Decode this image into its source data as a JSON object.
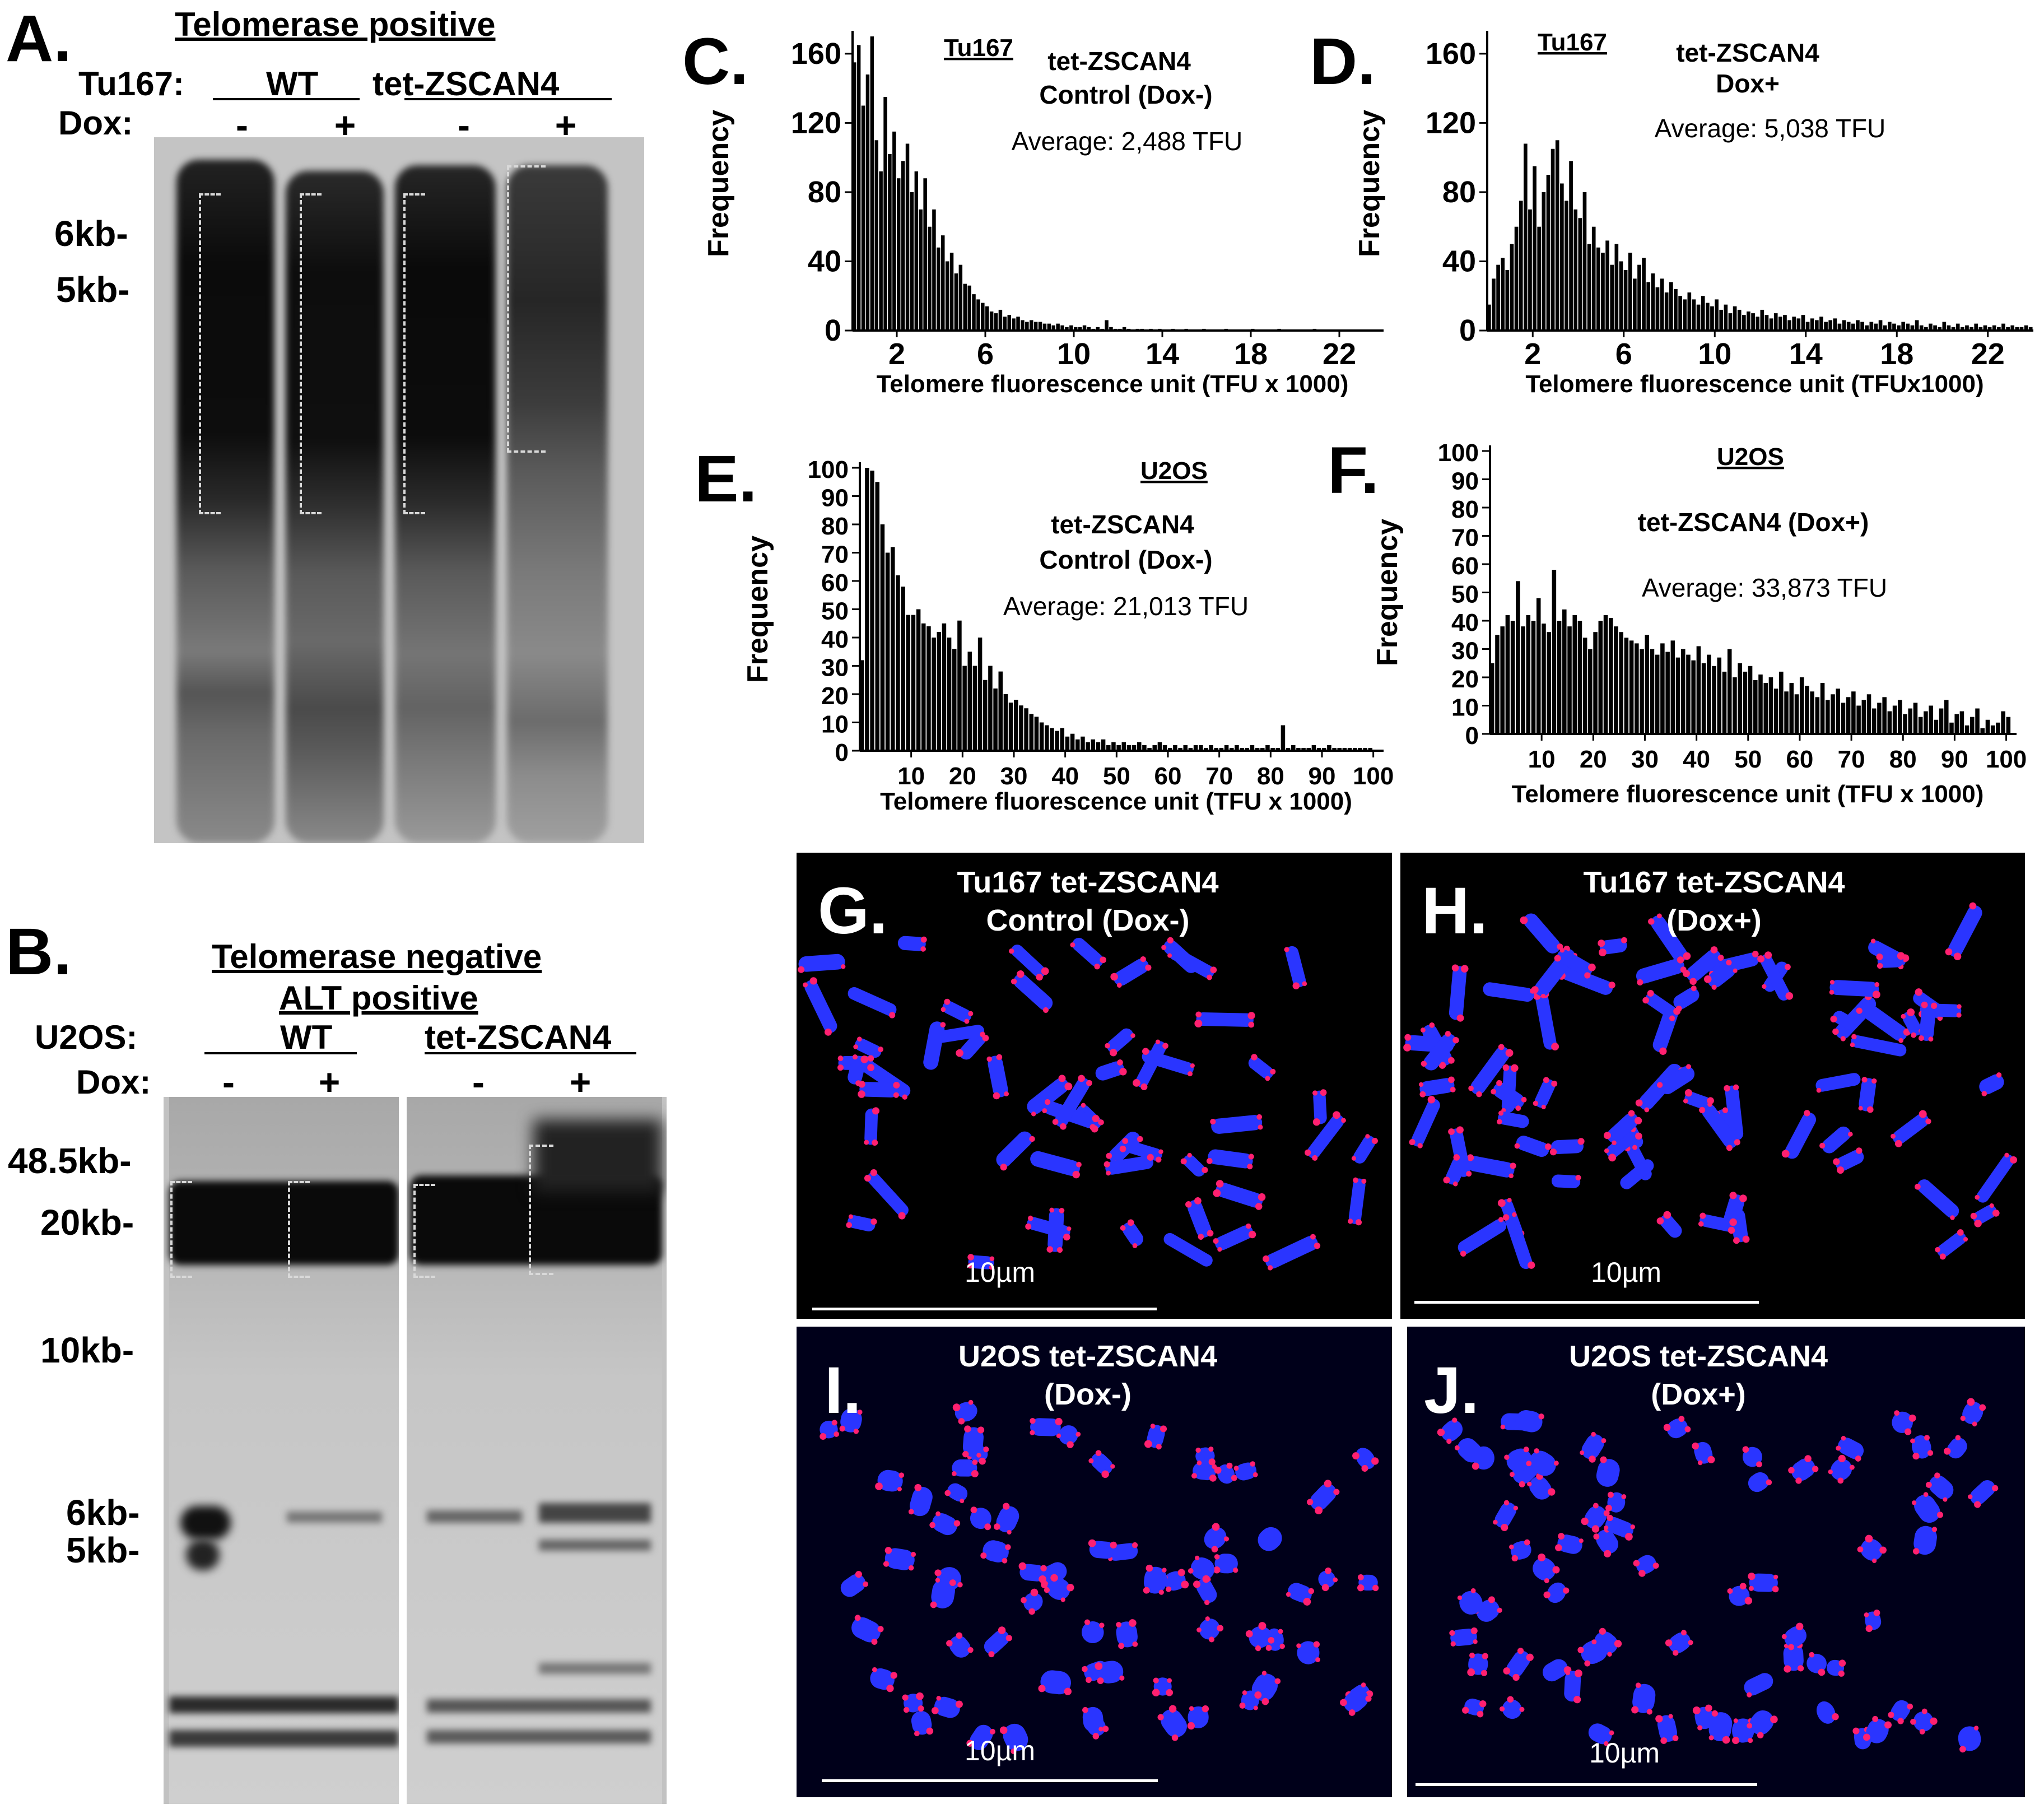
{
  "panelA": {
    "letter": "A.",
    "title": "Telomerase positive",
    "row_label": "Tu167:",
    "groups": [
      "WT",
      "tet-ZSCAN4"
    ],
    "dox_label": "Dox:",
    "dox": [
      "-",
      "+",
      "-",
      "+"
    ],
    "markers": [
      "6kb-",
      "5kb-"
    ]
  },
  "panelB": {
    "letter": "B.",
    "title1": "Telomerase negative",
    "title2": "ALT positive",
    "row_label": "U2OS:",
    "groups": [
      "WT",
      "tet-ZSCAN4"
    ],
    "dox_label": "Dox:",
    "dox": [
      "-",
      "+",
      "-",
      "+"
    ],
    "markers": [
      "48.5kb-",
      "20kb-",
      "10kb-",
      "6kb-",
      "5kb-"
    ]
  },
  "chart_data": [
    {
      "panel": "C.",
      "type": "bar",
      "cell": "Tu167",
      "title1": "tet-ZSCAN4",
      "title2": "Control (Dox-)",
      "average": "Average: 2,488 TFU",
      "xlabel": "Telomere fluorescence unit (TFU x 1000)",
      "ylabel": "Frequency",
      "xticks": [
        2,
        6,
        10,
        14,
        18,
        22
      ],
      "yticks": [
        0,
        40,
        80,
        120,
        160
      ],
      "xlim": [
        0,
        24
      ],
      "ylim": [
        0,
        170
      ],
      "bin_width": 0.2,
      "values": [
        155,
        165,
        130,
        148,
        175,
        110,
        92,
        135,
        102,
        115,
        88,
        98,
        108,
        80,
        92,
        70,
        88,
        60,
        70,
        48,
        55,
        40,
        45,
        33,
        38,
        27,
        26,
        21,
        18,
        16,
        14,
        11,
        10,
        12,
        8,
        9,
        7,
        8,
        6,
        5,
        6,
        5,
        5,
        4,
        4,
        3,
        4,
        3,
        2,
        3,
        2,
        2,
        3,
        2,
        1,
        2,
        1,
        6,
        2,
        1,
        1,
        2,
        1,
        0,
        1,
        1,
        0,
        1,
        0,
        1,
        0,
        0,
        1,
        0,
        0,
        1,
        0,
        0,
        0,
        1,
        0,
        0,
        0,
        0,
        1,
        0,
        0,
        0,
        0,
        0,
        1,
        0,
        0,
        0,
        0,
        0,
        1,
        0,
        0,
        0,
        0,
        0,
        0,
        0,
        1,
        0,
        0,
        0,
        0,
        0,
        0,
        0,
        0,
        0,
        0,
        0,
        0,
        0,
        0,
        0
      ]
    },
    {
      "panel": "D.",
      "type": "bar",
      "cell": "Tu167",
      "title1": "tet-ZSCAN4",
      "title2": "Dox+",
      "average": "Average: 5,038 TFU",
      "xlabel": "Telomere fluorescence unit (TFUx1000)",
      "ylabel": "Frequency",
      "xticks": [
        2,
        6,
        10,
        14,
        18,
        22
      ],
      "yticks": [
        0,
        40,
        80,
        120,
        160
      ],
      "xlim": [
        0,
        24
      ],
      "ylim": [
        0,
        170
      ],
      "bin_width": 0.2,
      "values": [
        15,
        30,
        38,
        42,
        35,
        50,
        60,
        75,
        108,
        70,
        95,
        60,
        80,
        90,
        105,
        110,
        85,
        75,
        98,
        70,
        65,
        80,
        50,
        60,
        48,
        45,
        52,
        38,
        50,
        40,
        35,
        45,
        30,
        38,
        42,
        28,
        33,
        25,
        30,
        22,
        28,
        24,
        20,
        18,
        22,
        18,
        15,
        20,
        16,
        14,
        18,
        12,
        15,
        10,
        14,
        12,
        9,
        11,
        10,
        8,
        12,
        9,
        7,
        10,
        8,
        9,
        6,
        8,
        7,
        9,
        5,
        7,
        6,
        8,
        5,
        6,
        7,
        4,
        6,
        5,
        4,
        6,
        5,
        3,
        5,
        4,
        6,
        3,
        5,
        4,
        3,
        5,
        4,
        3,
        6,
        3,
        2,
        4,
        3,
        2,
        5,
        3,
        2,
        4,
        2,
        3,
        2,
        4,
        2,
        3,
        2,
        3,
        2,
        4,
        2,
        3,
        2,
        2,
        3,
        2
      ]
    },
    {
      "panel": "E.",
      "type": "bar",
      "cell": "U2OS",
      "title1": "tet-ZSCAN4",
      "title2": "Control (Dox-)",
      "average": "Average: 21,013 TFU",
      "xlabel": "Telomere fluorescence unit (TFU x 1000)",
      "ylabel": "Frequency",
      "xticks": [
        10,
        20,
        30,
        40,
        50,
        60,
        70,
        80,
        90,
        100
      ],
      "yticks": [
        0,
        10,
        20,
        30,
        40,
        50,
        60,
        70,
        80,
        90,
        100
      ],
      "xlim": [
        0,
        102
      ],
      "ylim": [
        0,
        100
      ],
      "bin_width": 1,
      "values": [
        32,
        100,
        99,
        95,
        80,
        70,
        72,
        62,
        58,
        48,
        48,
        50,
        45,
        44,
        40,
        42,
        45,
        40,
        36,
        46,
        30,
        35,
        30,
        40,
        25,
        30,
        22,
        28,
        20,
        17,
        18,
        16,
        15,
        13,
        12,
        10,
        9,
        8,
        7,
        8,
        5,
        6,
        4,
        5,
        3,
        4,
        3,
        4,
        2,
        3,
        2,
        3,
        2,
        2,
        3,
        2,
        1,
        2,
        3,
        2,
        1,
        2,
        1,
        2,
        1,
        2,
        2,
        1,
        2,
        1,
        1,
        2,
        1,
        2,
        1,
        1,
        2,
        1,
        1,
        2,
        1,
        1,
        9,
        1,
        2,
        1,
        1,
        1,
        2,
        1,
        1,
        2,
        1,
        1,
        1,
        1,
        1,
        1,
        1,
        1,
        0
      ]
    },
    {
      "panel": "F.",
      "type": "bar",
      "cell": "U2OS",
      "title1": "tet-ZSCAN4 (Dox+)",
      "title2": "",
      "average": "Average: 33,873 TFU",
      "xlabel": "Telomere fluorescence unit (TFU x 1000)",
      "ylabel": "Frequency",
      "xticks": [
        10,
        20,
        30,
        40,
        50,
        60,
        70,
        80,
        90,
        100
      ],
      "yticks": [
        0,
        10,
        20,
        30,
        40,
        50,
        60,
        70,
        80,
        90,
        100
      ],
      "xlim": [
        0,
        102
      ],
      "ylim": [
        0,
        100
      ],
      "bin_width": 1,
      "values": [
        25,
        35,
        38,
        42,
        40,
        54,
        38,
        42,
        40,
        48,
        39,
        36,
        58,
        40,
        44,
        38,
        42,
        40,
        34,
        30,
        36,
        40,
        42,
        41,
        38,
        36,
        34,
        33,
        32,
        30,
        35,
        30,
        28,
        32,
        29,
        33,
        27,
        30,
        28,
        26,
        31,
        25,
        28,
        24,
        27,
        22,
        30,
        20,
        25,
        22,
        24,
        19,
        21,
        18,
        20,
        16,
        22,
        15,
        18,
        14,
        20,
        17,
        15,
        13,
        18,
        12,
        14,
        16,
        11,
        13,
        15,
        10,
        12,
        14,
        9,
        11,
        13,
        8,
        10,
        12,
        7,
        9,
        11,
        6,
        8,
        10,
        5,
        9,
        12,
        4,
        7,
        8,
        3,
        6,
        9,
        2,
        5,
        3,
        4,
        8,
        6
      ]
    }
  ],
  "micrographs": [
    {
      "letter": "G.",
      "line1": "Tu167 tet-ZSCAN4",
      "line2": "Control (Dox-)",
      "scale": "10µm"
    },
    {
      "letter": "H.",
      "line1": "Tu167 tet-ZSCAN4",
      "line2": "(Dox+)",
      "scale": "10µm"
    },
    {
      "letter": "I.",
      "line1": "U2OS tet-ZSCAN4",
      "line2": "(Dox-)",
      "scale": "10µm"
    },
    {
      "letter": "J.",
      "line1": "U2OS tet-ZSCAN4",
      "line2": "(Dox+)",
      "scale": "10µm"
    }
  ],
  "colors": {
    "chromosome": "#2a35ff",
    "telomere": "#ff2070",
    "gel_dark": "#0d0d0d",
    "gel_light": "#c9c9c9"
  }
}
